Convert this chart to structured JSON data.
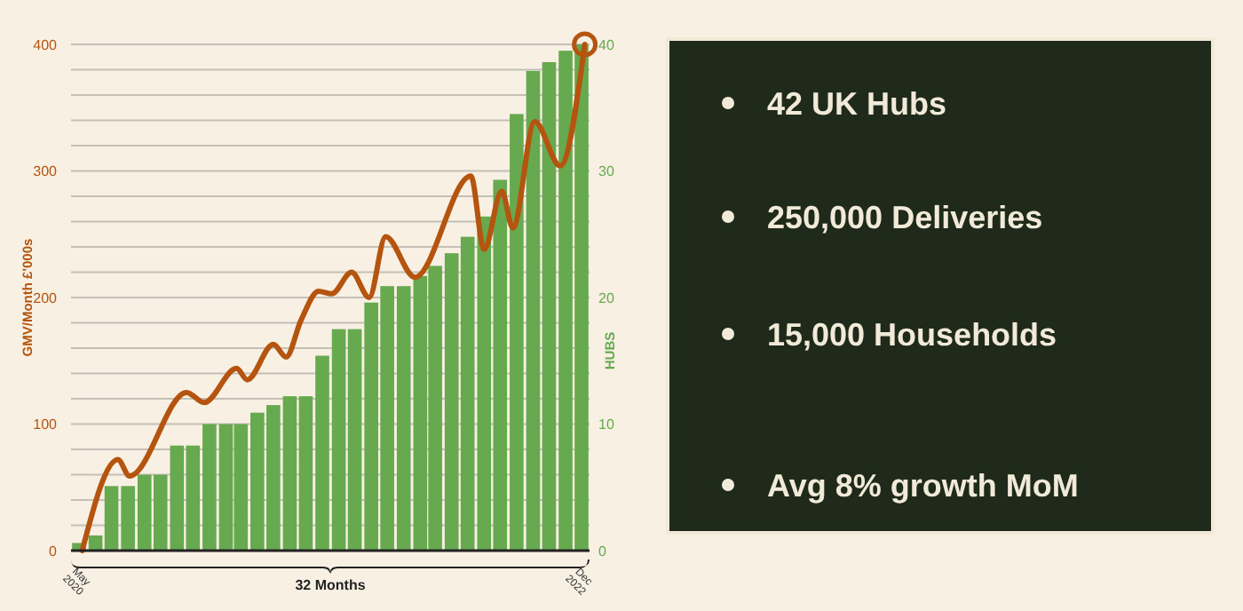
{
  "chart_data": [
    {
      "type": "bar",
      "xlabel": "32 Months",
      "ylabel": "GMV/Month £'000s",
      "y2label": "HUBS",
      "x": [
        "2020-05",
        "2020-06",
        "2020-07",
        "2020-08",
        "2020-09",
        "2020-10",
        "2020-11",
        "2020-12",
        "2021-01",
        "2021-02",
        "2021-03",
        "2021-04",
        "2021-05",
        "2021-06",
        "2021-07",
        "2021-08",
        "2021-09",
        "2021-10",
        "2021-11",
        "2021-12",
        "2022-01",
        "2022-02",
        "2022-03",
        "2022-04",
        "2022-05",
        "2022-06",
        "2022-07",
        "2022-08",
        "2022-09",
        "2022-10",
        "2022-11",
        "2022-12"
      ],
      "xlim": [
        "2020-04-16",
        "2022-12-16"
      ],
      "xticks": [
        {
          "value": "2020-05",
          "label": "May 2020"
        },
        {
          "value": "2022-12",
          "label": "Dec 2022"
        }
      ],
      "ylim": [
        0,
        400
      ],
      "yticks": [
        0,
        {
          "value": 20,
          "label": null
        },
        {
          "value": 40,
          "label": null
        },
        {
          "value": 60,
          "label": null
        },
        {
          "value": 80,
          "label": null
        },
        100,
        {
          "value": 120,
          "label": null
        },
        {
          "value": 140,
          "label": null
        },
        {
          "value": 160,
          "label": null
        },
        {
          "value": 180,
          "label": null
        },
        200,
        {
          "value": 220,
          "label": null
        },
        {
          "value": 240,
          "label": null
        },
        {
          "value": 260,
          "label": null
        },
        {
          "value": 280,
          "label": null
        },
        300,
        {
          "value": 320,
          "label": null
        },
        {
          "value": 340,
          "label": null
        },
        {
          "value": 360,
          "label": null
        },
        {
          "value": 380,
          "label": null
        },
        400
      ],
      "y2lim": [
        0,
        40
      ],
      "y2ticks": [
        0,
        10,
        20,
        30,
        40
      ],
      "grid": "y",
      "series": [
        {
          "type": "bar",
          "axis": "y2",
          "color": "#67a94f",
          "values": [
            0.6,
            1.2,
            5.1,
            5.1,
            6,
            6,
            8.3,
            8.3,
            10,
            10,
            10,
            10.9,
            11.5,
            12.2,
            12.2,
            15.4,
            17.5,
            17.5,
            19.6,
            20.9,
            20.9,
            21.7,
            22.5,
            23.5,
            24.8,
            26.4,
            29.3,
            34.5,
            37.9,
            38.6,
            39.5,
            40
          ]
        },
        {
          "type": "line",
          "color": "#b5540f",
          "line_style": "solid",
          "x": [
            "2020-05-07",
            "2020-07-13",
            "2020-08-04",
            "2020-11-19",
            "2020-12-22",
            "2021-02-21",
            "2021-03-13",
            "2021-05-01",
            "2021-05-25",
            "2021-06-22",
            "2021-07-25",
            "2021-08-19",
            "2021-09-25",
            "2021-10-28",
            "2021-11-28",
            "2022-01-22",
            "2022-05-07",
            "2022-06-01",
            "2022-07-04",
            "2022-07-25",
            "2022-09-04",
            "2022-10-22",
            "2022-12-07"
          ],
          "values": [
            0,
            72,
            59,
            125,
            117,
            144,
            135,
            163,
            153,
            182,
            205,
            203,
            220,
            200,
            248,
            216,
            296,
            238,
            284,
            255,
            339,
            304,
            400
          ]
        },
        {
          "type": "scatter",
          "color": "#b5540f",
          "marker": "circle",
          "x": [
            "2022-12-07"
          ],
          "values": [
            400
          ]
        }
      ]
    },
    {
      "type": "other",
      "annotations": [
        "42 UK Hubs",
        "250,000 Deliveries",
        "15,000 Households",
        "Avg 8% growth MoM"
      ]
    }
  ]
}
